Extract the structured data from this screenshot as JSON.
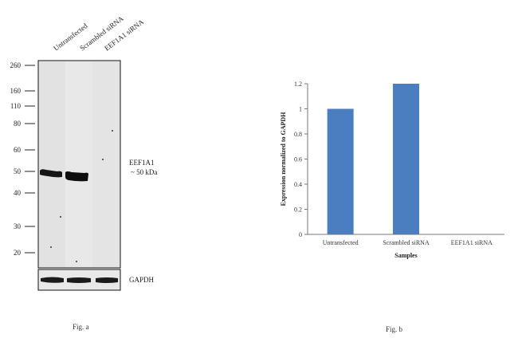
{
  "fig_a": {
    "caption": "Fig. a",
    "lanes": [
      "Untransfected",
      "Scrambled siRNA",
      "EEF1A1 siRNA"
    ],
    "mw_markers": [
      "260",
      "160",
      "110",
      "80",
      "60",
      "50",
      "40",
      "30",
      "20"
    ],
    "band_label_line1": "EEF1A1",
    "band_label_line2": "~ 50 kDa",
    "loading_control_label": "GAPDH"
  },
  "fig_b": {
    "caption": "Fig. b"
  },
  "chart_data": {
    "type": "bar",
    "title": "",
    "categories": [
      "Untransfected",
      "Scrambled siRNA",
      "EEF1A1 siRNA"
    ],
    "values": [
      1.0,
      1.2,
      0
    ],
    "xlabel": "Samples",
    "ylabel": "Expression  normalized to GAPDH",
    "ylim": [
      0,
      1.2
    ],
    "yticks": [
      "0",
      "0.2",
      "0.4",
      "0.6",
      "0.8",
      "1",
      "1.2"
    ],
    "grid": false,
    "legend": "none",
    "bar_color": "#4a7ec0"
  }
}
